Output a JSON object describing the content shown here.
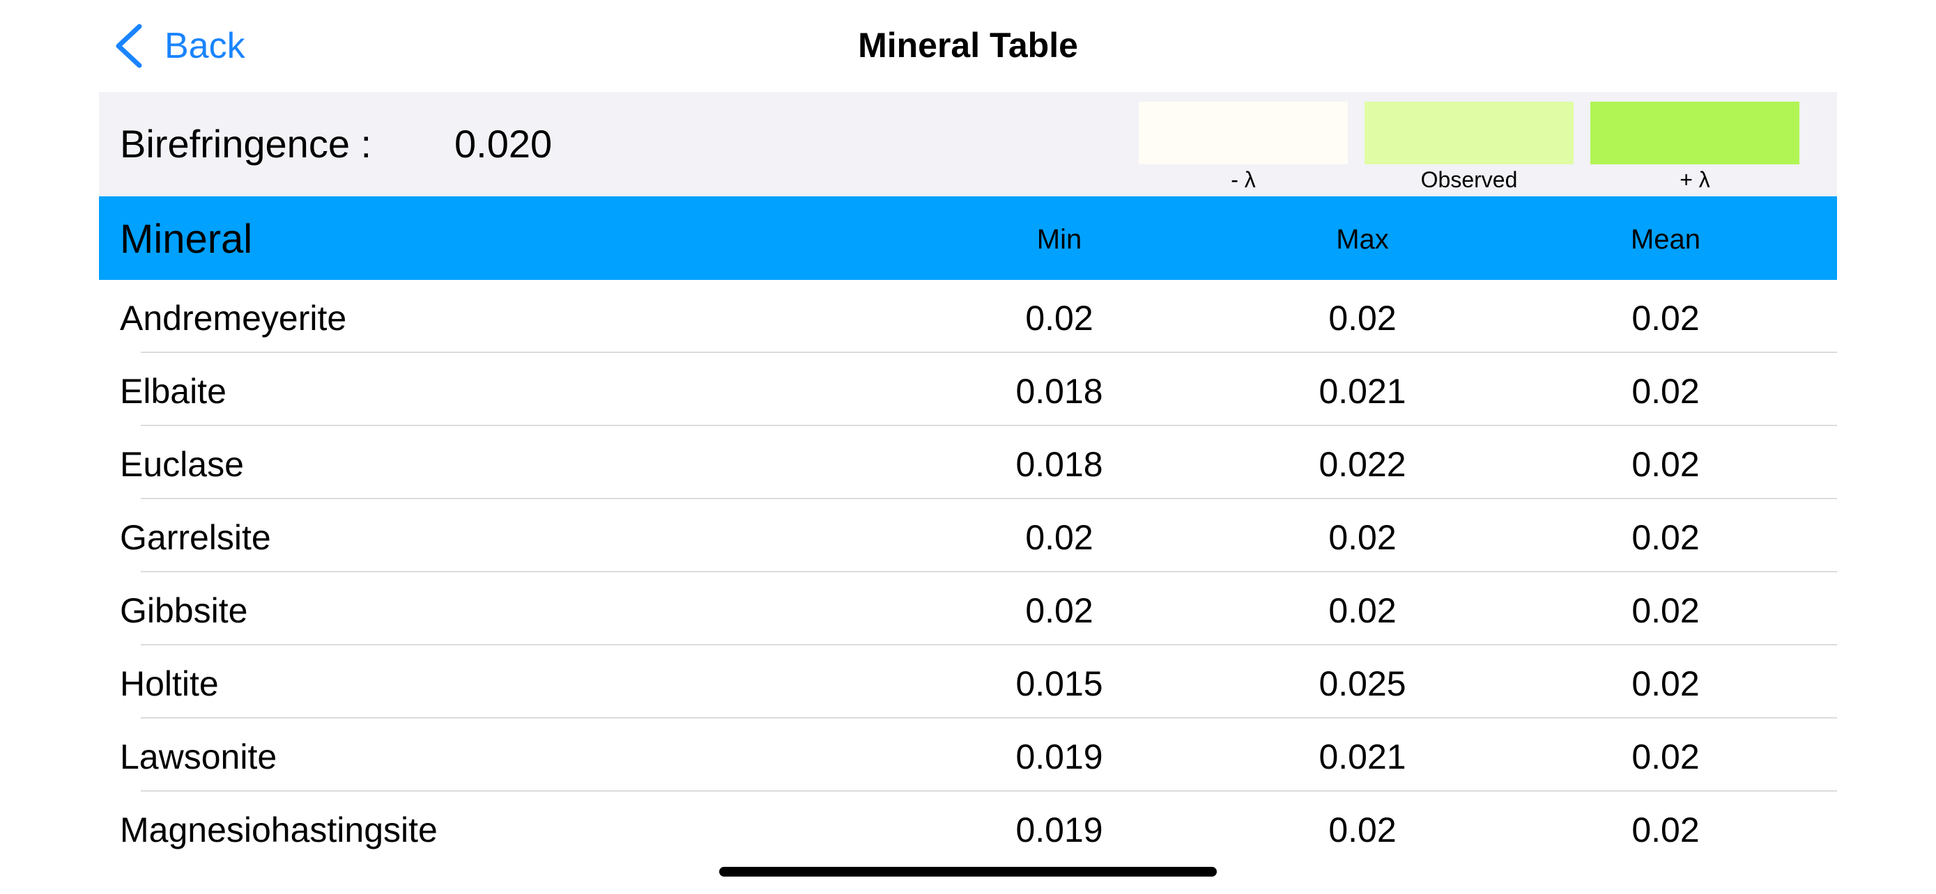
{
  "nav": {
    "back_label": "Back",
    "title": "Mineral Table",
    "accent_color": "#1a84ff"
  },
  "birefringence": {
    "label": "Birefringence :",
    "value": "0.020",
    "swatches": [
      {
        "label": "- λ",
        "color": "#fffdf6"
      },
      {
        "label": "Observed",
        "color": "#e0fca4"
      },
      {
        "label": "+ λ",
        "color": "#b1f555"
      }
    ]
  },
  "table": {
    "header_color": "#00a1ff",
    "columns": [
      "Mineral",
      "Min",
      "Max",
      "Mean"
    ],
    "rows": [
      {
        "mineral": "Andremeyerite",
        "min": "0.02",
        "max": "0.02",
        "mean": "0.02"
      },
      {
        "mineral": "Elbaite",
        "min": "0.018",
        "max": "0.021",
        "mean": "0.02"
      },
      {
        "mineral": "Euclase",
        "min": "0.018",
        "max": "0.022",
        "mean": "0.02"
      },
      {
        "mineral": "Garrelsite",
        "min": "0.02",
        "max": "0.02",
        "mean": "0.02"
      },
      {
        "mineral": "Gibbsite",
        "min": "0.02",
        "max": "0.02",
        "mean": "0.02"
      },
      {
        "mineral": "Holtite",
        "min": "0.015",
        "max": "0.025",
        "mean": "0.02"
      },
      {
        "mineral": "Lawsonite",
        "min": "0.019",
        "max": "0.021",
        "mean": "0.02"
      },
      {
        "mineral": "Magnesiohastingsite",
        "min": "0.019",
        "max": "0.02",
        "mean": "0.02"
      }
    ]
  }
}
